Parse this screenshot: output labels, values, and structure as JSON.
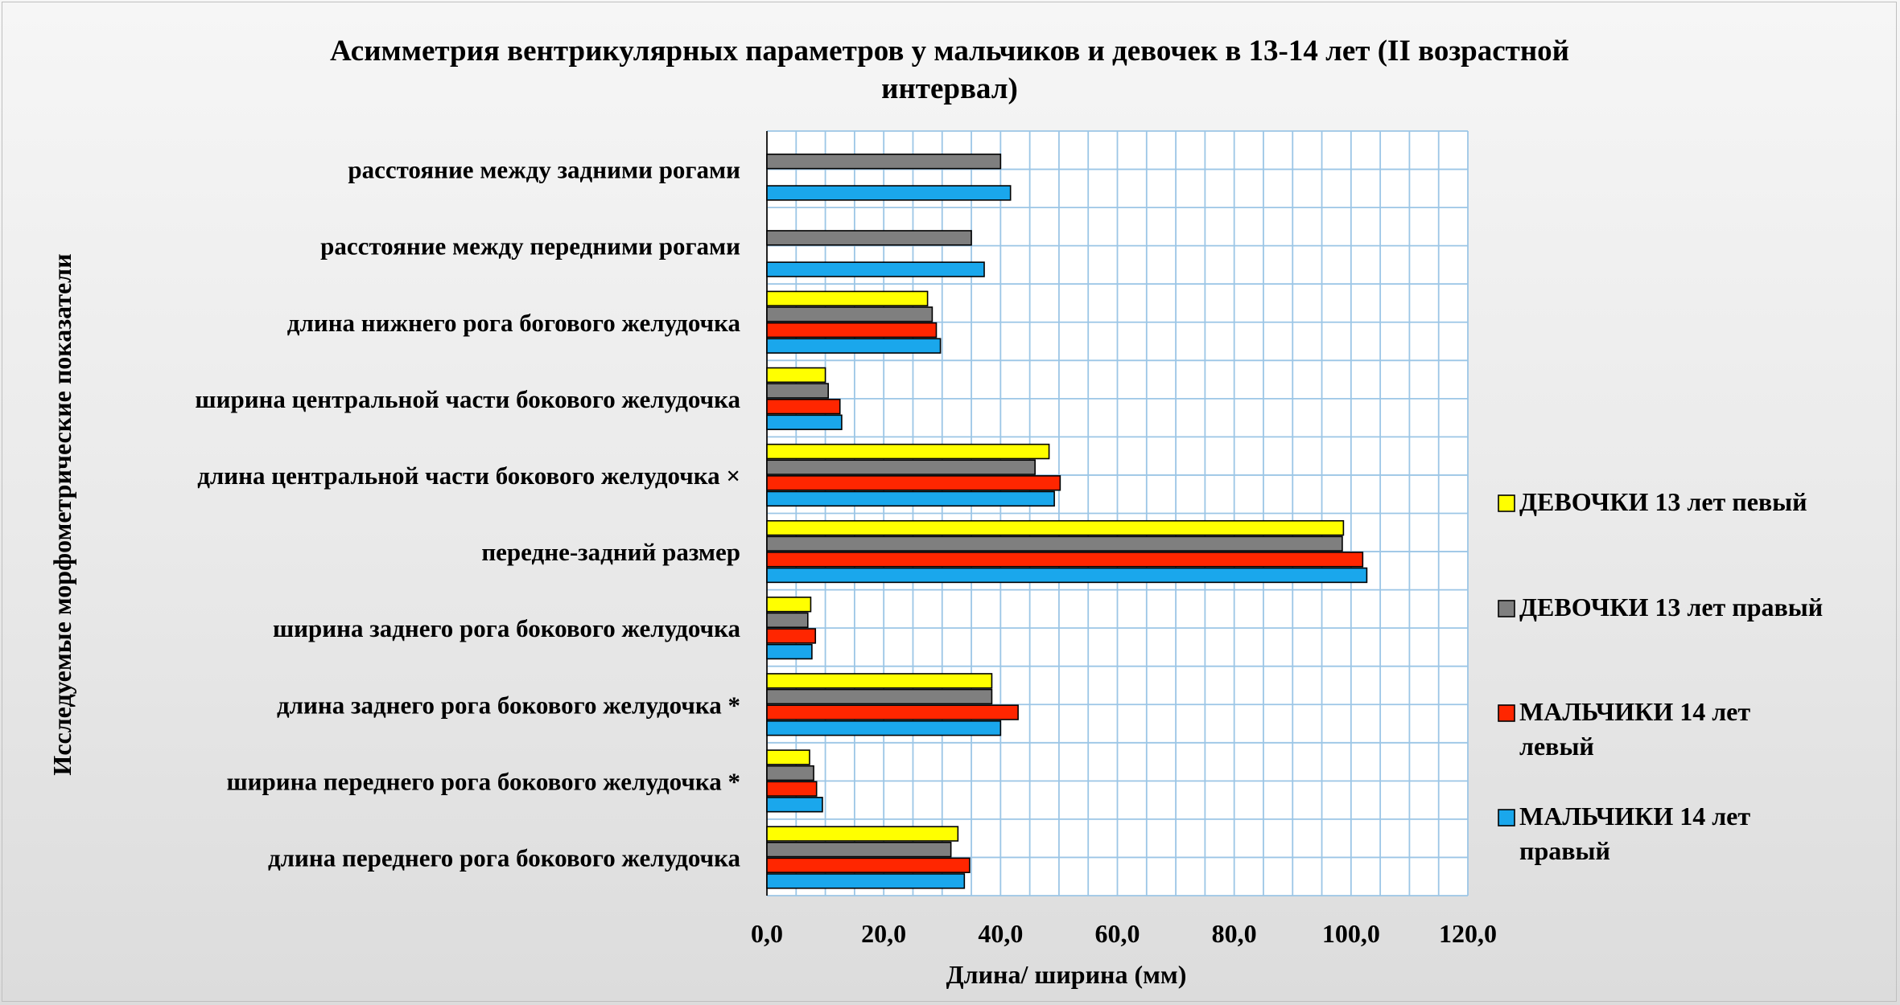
{
  "chart_data": {
    "type": "bar",
    "orientation": "horizontal",
    "title_lines": [
      "Асимметрия вентрикулярных параметров у мальчиков и девочек в 13-14 лет (II возрастной",
      "интервал)"
    ],
    "title": "Асимметрия вентрикулярных параметров у мальчиков и девочек в 13-14 лет (II возрастной интервал)",
    "xlabel": "Длина/ ширина (мм)",
    "ylabel": "Исследуемые морфометрические показатели",
    "xlim": [
      0,
      120
    ],
    "xticks": [
      "0,0",
      "20,0",
      "40,0",
      "60,0",
      "80,0",
      "100,0",
      "120,0"
    ],
    "grid": true,
    "legend_position": "right",
    "categories": [
      "расстояние между задними рогами",
      "расстояние между передними рогами",
      "длина нижнего рога богового желудочка",
      "ширина центральной части бокового желудочка",
      "длина центральной части бокового желудочка ×",
      "передне-задний размер",
      "ширина заднего рога бокового желудочка",
      "длина заднего рога бокового желудочка *",
      "ширина переднего рога бокового желудочка *",
      "длина переднего рога бокового желудочка"
    ],
    "series": [
      {
        "name": "ДЕВОЧКИ 13 лет  певый",
        "legend_lines": [
          "ДЕВОЧКИ 13 лет  певый"
        ],
        "color": "#ffff00",
        "values": [
          null,
          null,
          27.5,
          10.0,
          48.3,
          98.7,
          7.5,
          38.5,
          7.3,
          32.7
        ]
      },
      {
        "name": "ДЕВОЧКИ 13 лет  правый",
        "legend_lines": [
          "ДЕВОЧКИ 13 лет  правый"
        ],
        "color": "#7f7f7f",
        "values": [
          40.0,
          35.0,
          28.3,
          10.5,
          45.9,
          98.5,
          7.0,
          38.5,
          8.0,
          31.5
        ]
      },
      {
        "name": "МАЛЬЧИКИ 14 лет левый",
        "legend_lines": [
          "МАЛЬЧИКИ 14 лет",
          "левый"
        ],
        "color": "#ff2600",
        "values": [
          null,
          null,
          29.0,
          12.5,
          50.2,
          102.0,
          8.3,
          43.0,
          8.5,
          34.7
        ]
      },
      {
        "name": "МАЛЬЧИКИ 14 лет правый",
        "legend_lines": [
          "МАЛЬЧИКИ 14 лет",
          "правый"
        ],
        "color": "#1aa7ec",
        "values": [
          41.7,
          37.2,
          29.7,
          12.8,
          49.2,
          102.7,
          7.7,
          40.0,
          9.5,
          33.8
        ]
      }
    ]
  }
}
